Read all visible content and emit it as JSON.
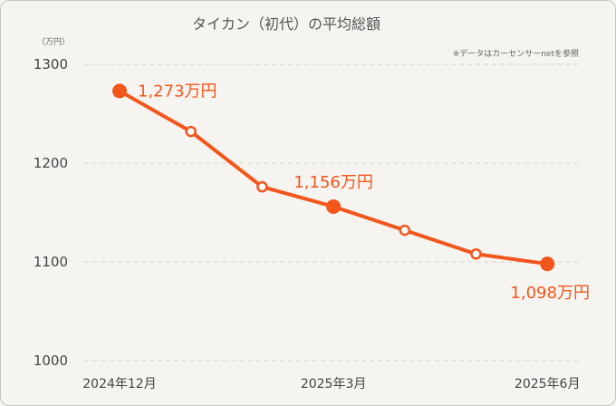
{
  "chart_data": {
    "type": "line",
    "title": "タイカン（初代）の平均総額",
    "y_unit": "（万円）",
    "source_note": "※データはカーセンサーnetを参照",
    "ylim": [
      1000,
      1300
    ],
    "y_ticks": [
      "1300",
      "1200",
      "1100",
      "1000"
    ],
    "y_tick_values": [
      1300,
      1200,
      1100,
      1000
    ],
    "x_ticks": [
      "2024年12月",
      "2025年3月",
      "2025年6月"
    ],
    "x_tick_index": [
      0,
      3,
      6
    ],
    "grid": true,
    "series": [
      {
        "color": "#f2561d",
        "values": [
          1273,
          1232,
          1176,
          1156,
          1132,
          1108,
          1098
        ],
        "highlight_index": [
          0,
          3,
          6
        ]
      }
    ],
    "data_labels": [
      {
        "index": 0,
        "text": "1,273万円",
        "position": "right"
      },
      {
        "index": 3,
        "text": "1,156万円",
        "position": "above"
      },
      {
        "index": 6,
        "text": "1,098万円",
        "position": "below"
      }
    ]
  }
}
